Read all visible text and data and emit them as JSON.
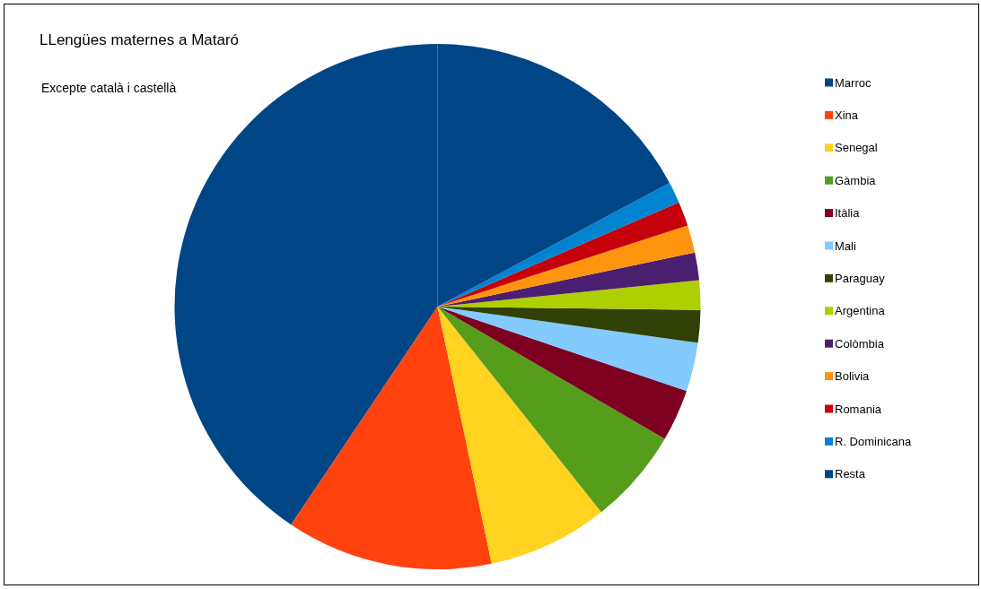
{
  "chart_data": {
    "type": "pie",
    "title": "LLengües maternes a Mataró",
    "subtitle": "Excepte català i castellà",
    "categories": [
      "Marroc",
      "Xina",
      "Senegal",
      "Gàmbia",
      "Itàlia",
      "Mali",
      "Paraguay",
      "Argentina",
      "Colòmbia",
      "Bolivia",
      "Romania",
      "R. Dominicana",
      "Resta"
    ],
    "values": [
      40.6,
      12.7,
      7.4,
      5.9,
      3.2,
      3.0,
      2.0,
      1.8,
      1.7,
      1.7,
      1.5,
      1.3,
      17.2
    ],
    "colors": [
      "#004586",
      "#ff420e",
      "#ffd320",
      "#579d1c",
      "#7e0021",
      "#83caff",
      "#314004",
      "#aecf00",
      "#4b1f6f",
      "#ff950e",
      "#c5000b",
      "#0084d1",
      "#004586"
    ],
    "legend": "right"
  }
}
